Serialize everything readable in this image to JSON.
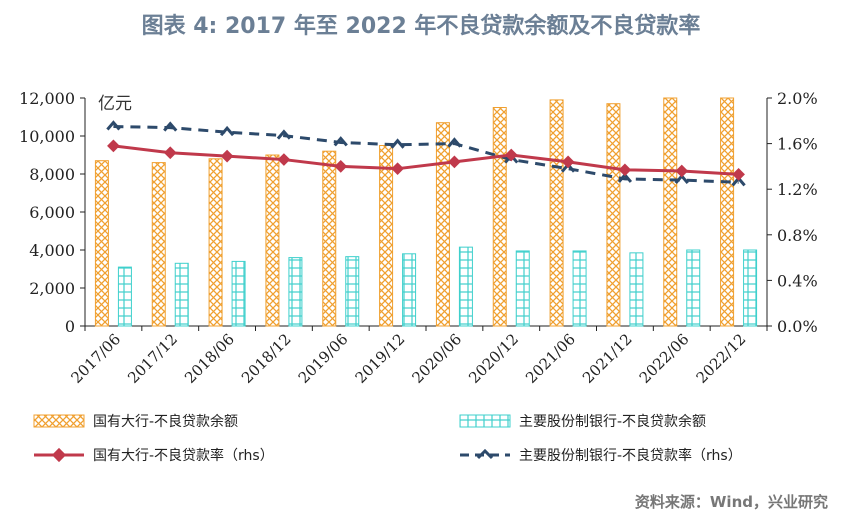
{
  "title": "图表 4:   2017 年至 2022 年不良贷款余额及不良贷款率",
  "source": "资料来源：Wind，兴业研究",
  "colors": {
    "title": "#6b7f95",
    "source": "#777777",
    "bar_big": "#f0a030",
    "bar_joint": "#3fd0cc",
    "line_big": "#c0394b",
    "line_joint": "#2d4a6b"
  },
  "chart_data": {
    "type": "bar",
    "categories": [
      "2017/06",
      "2017/12",
      "2018/06",
      "2018/12",
      "2019/06",
      "2019/12",
      "2020/06",
      "2020/12",
      "2021/06",
      "2021/12",
      "2022/06",
      "2022/12"
    ],
    "ylabel": "亿元",
    "ylim": [
      0,
      12000
    ],
    "yticks": [
      "0",
      "2,000",
      "4,000",
      "6,000",
      "8,000",
      "10,000",
      "12,000"
    ],
    "y2lim": [
      0,
      2.0
    ],
    "y2ticks": [
      "0.0%",
      "0.4%",
      "0.8%",
      "1.2%",
      "1.6%",
      "2.0%"
    ],
    "grid": false,
    "legend_position": "bottom",
    "series": [
      {
        "name": "国有大行-不良贷款余额",
        "kind": "bar",
        "axis": "left",
        "values": [
          8700,
          8600,
          8800,
          9000,
          9200,
          9500,
          10700,
          11500,
          11900,
          11700,
          12000,
          12000
        ]
      },
      {
        "name": "主要股份制银行-不良贷款余额",
        "kind": "bar",
        "axis": "left",
        "values": [
          3100,
          3300,
          3400,
          3600,
          3650,
          3800,
          4150,
          3950,
          3950,
          3850,
          4000,
          4000
        ]
      },
      {
        "name": "国有大行-不良贷款率（rhs）",
        "kind": "line",
        "axis": "right",
        "values": [
          1.58,
          1.52,
          1.49,
          1.46,
          1.4,
          1.38,
          1.44,
          1.5,
          1.44,
          1.37,
          1.36,
          1.33
        ]
      },
      {
        "name": "主要股份制银行-不良贷款率（rhs）",
        "kind": "dashed-line",
        "axis": "right",
        "values": [
          1.75,
          1.74,
          1.7,
          1.67,
          1.61,
          1.59,
          1.6,
          1.46,
          1.38,
          1.29,
          1.28,
          1.26
        ]
      }
    ]
  }
}
